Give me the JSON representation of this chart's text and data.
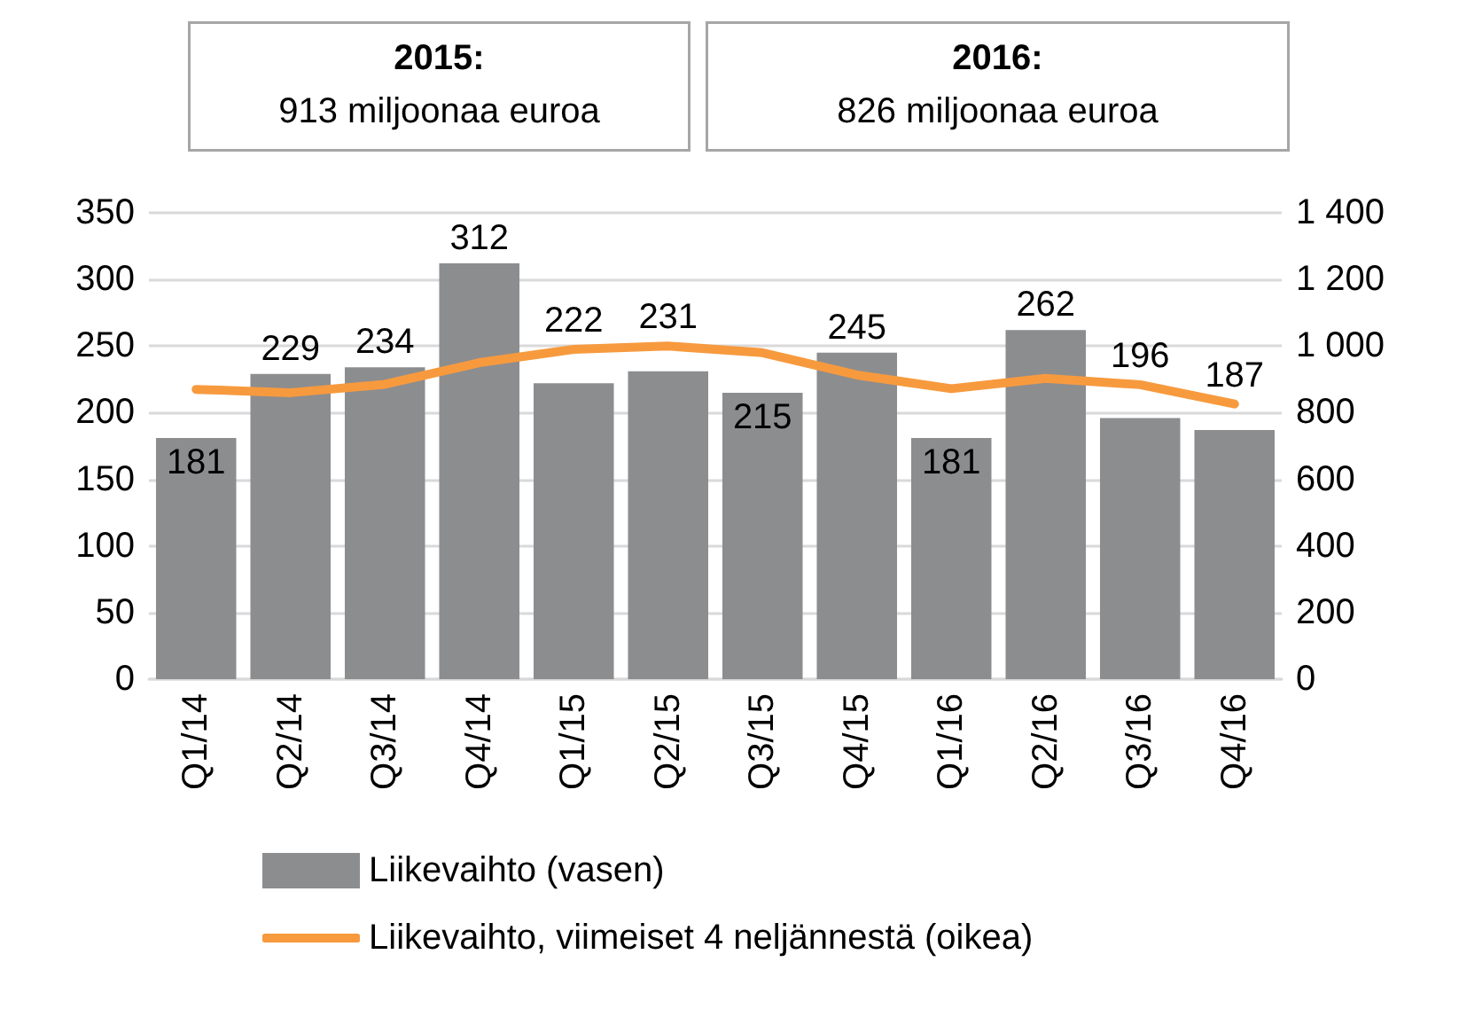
{
  "chart_data": {
    "type": "bar",
    "categories": [
      "Q1/14",
      "Q2/14",
      "Q3/14",
      "Q4/14",
      "Q1/15",
      "Q2/15",
      "Q3/15",
      "Q4/15",
      "Q1/16",
      "Q2/16",
      "Q3/16",
      "Q4/16"
    ],
    "series": [
      {
        "name": "Liikevaihto (vasen)",
        "color": "#8c8d8f",
        "values": [
          181,
          229,
          234,
          312,
          222,
          231,
          215,
          245,
          181,
          262,
          196,
          187
        ],
        "data_labels": true
      },
      {
        "name": "Liikevaihto, viimeiset 4 neljännestä (oikea)",
        "type": "line",
        "axis": "y2",
        "color": "#f79a3e",
        "values": [
          870,
          860,
          885,
          950,
          990,
          1000,
          980,
          913,
          872,
          903,
          884,
          826
        ]
      }
    ],
    "ylim": [
      0,
      350
    ],
    "yticks": [
      0,
      50,
      100,
      150,
      200,
      250,
      300,
      350
    ],
    "y2lim": [
      0,
      1400
    ],
    "y2ticks": [
      0,
      200,
      400,
      600,
      800,
      {
        "value": 1000,
        "label": "1 000"
      },
      {
        "value": 1200,
        "label": "1 200"
      },
      {
        "value": 1400,
        "label": "1 400"
      }
    ],
    "annotations": [
      "2015:\n913 miljoonaa euroa",
      "2016:\n826 miljoonaa euroa"
    ],
    "grid": "y",
    "legend": "bottom",
    "marker": "none",
    "line_style": "solid"
  }
}
